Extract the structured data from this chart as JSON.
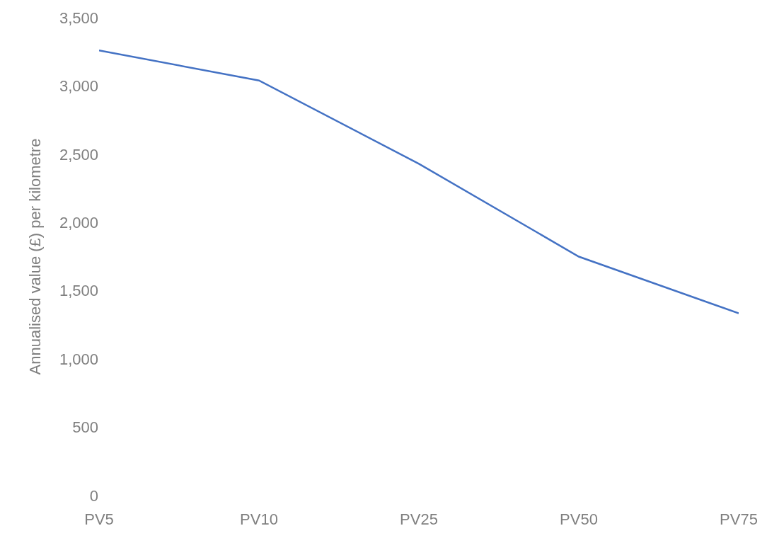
{
  "chart_data": {
    "type": "line",
    "ylabel": "Annualised value (£) per kilometre",
    "categories": [
      "PV5",
      "PV10",
      "PV25",
      "PV50",
      "PV75"
    ],
    "series": [
      {
        "color": "#4472c4",
        "values": [
          3260,
          3040,
          2430,
          1750,
          1335
        ]
      }
    ],
    "ylim": [
      0,
      3500
    ],
    "yticks": [
      {
        "value": 0,
        "label": "0"
      },
      {
        "value": 500,
        "label": "500"
      },
      {
        "value": 1000,
        "label": "1,000"
      },
      {
        "value": 1500,
        "label": "1,500"
      },
      {
        "value": 2000,
        "label": "2,000"
      },
      {
        "value": 2500,
        "label": "2,500"
      },
      {
        "value": 3000,
        "label": "3,000"
      },
      {
        "value": 3500,
        "label": "3,500"
      }
    ],
    "legend": false,
    "marker": "none",
    "line_style": "solid"
  }
}
